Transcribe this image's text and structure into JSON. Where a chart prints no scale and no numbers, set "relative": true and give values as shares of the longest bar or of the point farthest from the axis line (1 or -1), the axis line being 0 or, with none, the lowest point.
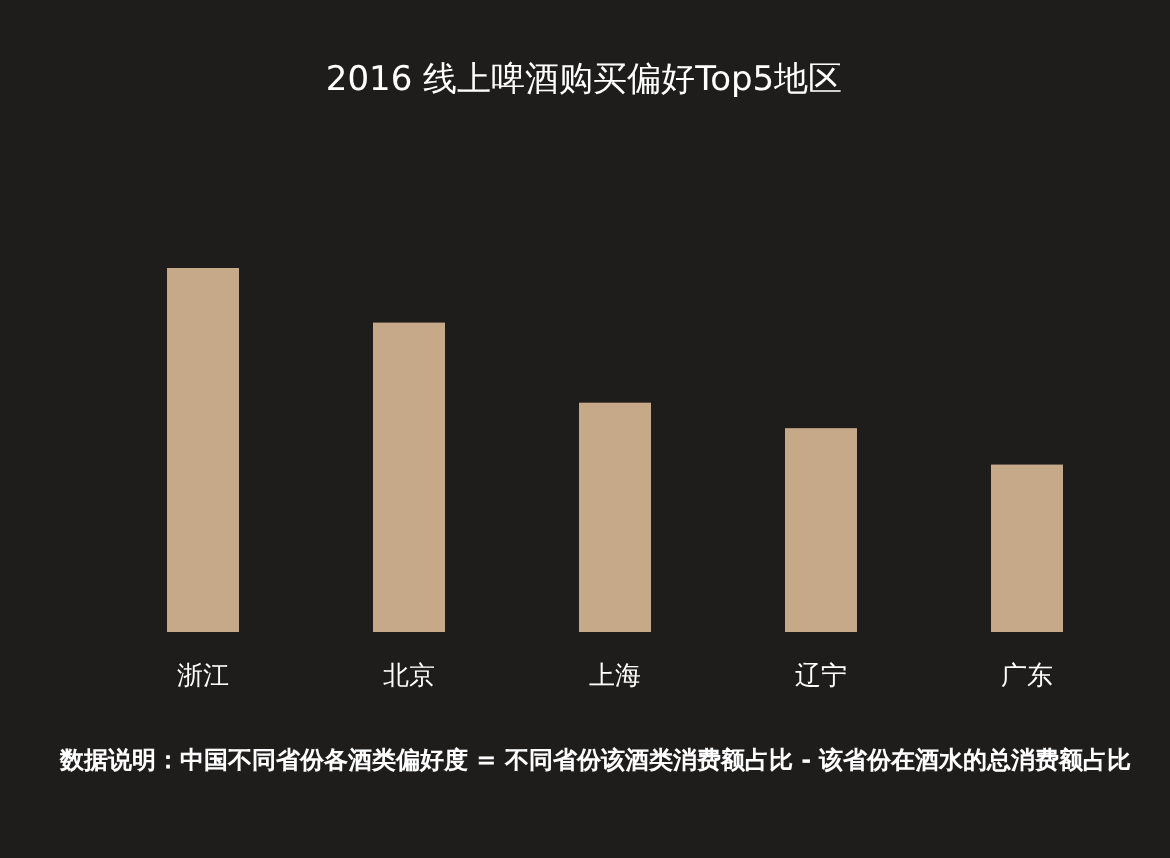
{
  "chart_data": {
    "type": "bar",
    "title": "2016 线上啤酒购买偏好Top5地区",
    "categories": [
      "浙江",
      "北京",
      "上海",
      "辽宁",
      "广东"
    ],
    "values": [
      1,
      0.85,
      0.63,
      0.56,
      0.46
    ],
    "color": "#c5a988",
    "relative": true,
    "annotations": [
      "数据说明：中国不同省份各酒类偏好度 = 不同省份该酒类消费额占比 - 该省份在酒水的总消费额占比"
    ]
  }
}
